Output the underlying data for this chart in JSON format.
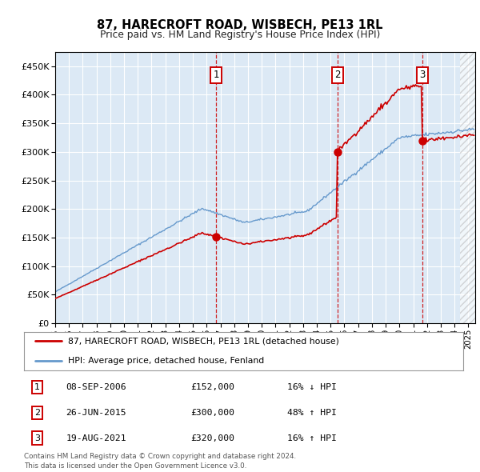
{
  "title": "87, HARECROFT ROAD, WISBECH, PE13 1RL",
  "subtitle": "Price paid vs. HM Land Registry's House Price Index (HPI)",
  "yticks": [
    0,
    50000,
    100000,
    150000,
    200000,
    250000,
    300000,
    350000,
    400000,
    450000
  ],
  "ytick_labels": [
    "£0",
    "£50K",
    "£100K",
    "£150K",
    "£200K",
    "£250K",
    "£300K",
    "£350K",
    "£400K",
    "£450K"
  ],
  "ylim": [
    0,
    475000
  ],
  "xlim_start": 1995.0,
  "xlim_end": 2025.5,
  "background_color": "#dce9f5",
  "red_color": "#cc0000",
  "blue_color": "#6699cc",
  "sale_dates": [
    2006.69,
    2015.49,
    2021.64
  ],
  "sale_prices": [
    152000,
    300000,
    320000
  ],
  "sale_labels": [
    "1",
    "2",
    "3"
  ],
  "transaction_info": [
    {
      "label": "1",
      "date": "08-SEP-2006",
      "price": "£152,000",
      "hpi": "16% ↓ HPI"
    },
    {
      "label": "2",
      "date": "26-JUN-2015",
      "price": "£300,000",
      "hpi": "48% ↑ HPI"
    },
    {
      "label": "3",
      "date": "19-AUG-2021",
      "price": "£320,000",
      "hpi": "16% ↑ HPI"
    }
  ],
  "legend_line1": "87, HARECROFT ROAD, WISBECH, PE13 1RL (detached house)",
  "legend_line2": "HPI: Average price, detached house, Fenland",
  "footer1": "Contains HM Land Registry data © Crown copyright and database right 2024.",
  "footer2": "This data is licensed under the Open Government Licence v3.0."
}
